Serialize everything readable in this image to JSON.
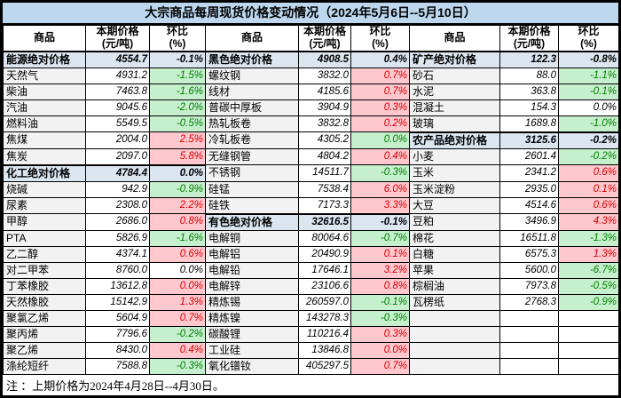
{
  "title": "大宗商品每周现货价格变动情况（2024年5月6日--5月10日）",
  "note": "注 ：上期价格为2024年4月28日--4月30日。",
  "header": {
    "commodity": "商品",
    "price": "本期价格",
    "price_unit": "(元/吨)",
    "pct": "环比",
    "pct_unit": "(%)"
  },
  "colors": {
    "title_bg": "#BDD7EE",
    "category_bg": "#DCE6F1",
    "name_bg": "#F2F2F2",
    "up_bg": "#FFC7CE",
    "up_text": "#D60000",
    "down_bg": "#C6EFCE",
    "down_text": "#008000",
    "border": "#000000"
  },
  "rows": [
    [
      {
        "name": "能源绝对价格",
        "price": "4554.7",
        "pct": "-0.1%",
        "style": "cat"
      },
      {
        "name": "黑色绝对价格",
        "price": "4908.5",
        "pct": "0.4%",
        "style": "cat"
      },
      {
        "name": "矿产绝对价格",
        "price": "122.3",
        "pct": "-0.8%",
        "style": "cat"
      }
    ],
    [
      {
        "name": "天然气",
        "price": "4931.2",
        "pct": "-1.5%",
        "style": "green"
      },
      {
        "name": "螺纹钢",
        "price": "3832.0",
        "pct": "0.7%",
        "style": "red"
      },
      {
        "name": "砂石",
        "price": "88.0",
        "pct": "-1.1%",
        "style": "green"
      }
    ],
    [
      {
        "name": "柴油",
        "price": "7463.8",
        "pct": "-1.6%",
        "style": "green"
      },
      {
        "name": "线材",
        "price": "4185.6",
        "pct": "0.7%",
        "style": "red"
      },
      {
        "name": "水泥",
        "price": "363.8",
        "pct": "-0.1%",
        "style": "green"
      }
    ],
    [
      {
        "name": "汽油",
        "price": "9045.6",
        "pct": "-2.0%",
        "style": "green"
      },
      {
        "name": "普碳中厚板",
        "price": "3904.9",
        "pct": "0.3%",
        "style": "red"
      },
      {
        "name": "混凝土",
        "price": "154.3",
        "pct": "0.0%",
        "style": "plain"
      }
    ],
    [
      {
        "name": "燃料油",
        "price": "5549.5",
        "pct": "-0.5%",
        "style": "green"
      },
      {
        "name": "热轧板卷",
        "price": "3832.8",
        "pct": "0.2%",
        "style": "red"
      },
      {
        "name": "玻璃",
        "price": "1689.8",
        "pct": "-1.0%",
        "style": "green"
      }
    ],
    [
      {
        "name": "焦煤",
        "price": "2004.0",
        "pct": "2.5%",
        "style": "red"
      },
      {
        "name": "冷轧板卷",
        "price": "4305.2",
        "pct": "0.0%",
        "style": "green"
      },
      {
        "name": "农产品绝对价格",
        "price": "3125.6",
        "pct": "-0.2%",
        "style": "cat"
      }
    ],
    [
      {
        "name": "焦炭",
        "price": "2097.0",
        "pct": "5.8%",
        "style": "red"
      },
      {
        "name": "无缝钢管",
        "price": "4804.2",
        "pct": "0.4%",
        "style": "red"
      },
      {
        "name": "小麦",
        "price": "2601.4",
        "pct": "-0.2%",
        "style": "green"
      }
    ],
    [
      {
        "name": "化工绝对价格",
        "price": "4784.4",
        "pct": "0.0%",
        "style": "cat"
      },
      {
        "name": "不锈钢",
        "price": "14511.7",
        "pct": "-0.3%",
        "style": "green"
      },
      {
        "name": "玉米",
        "price": "2341.2",
        "pct": "0.6%",
        "style": "red"
      }
    ],
    [
      {
        "name": "烧碱",
        "price": "942.9",
        "pct": "-0.9%",
        "style": "green"
      },
      {
        "name": "硅锰",
        "price": "7538.4",
        "pct": "6.0%",
        "style": "red"
      },
      {
        "name": "玉米淀粉",
        "price": "2935.0",
        "pct": "0.1%",
        "style": "red"
      }
    ],
    [
      {
        "name": "尿素",
        "price": "2308.0",
        "pct": "2.2%",
        "style": "red"
      },
      {
        "name": "硅铁",
        "price": "7173.3",
        "pct": "3.3%",
        "style": "red"
      },
      {
        "name": "大豆",
        "price": "4514.6",
        "pct": "0.6%",
        "style": "red"
      }
    ],
    [
      {
        "name": "甲醇",
        "price": "2686.0",
        "pct": "0.8%",
        "style": "red"
      },
      {
        "name": "有色绝对价格",
        "price": "32616.5",
        "pct": "-0.1%",
        "style": "cat"
      },
      {
        "name": "豆粕",
        "price": "3496.9",
        "pct": "4.3%",
        "style": "red"
      }
    ],
    [
      {
        "name": "PTA",
        "price": "5826.9",
        "pct": "-1.6%",
        "style": "green"
      },
      {
        "name": "电解铜",
        "price": "80064.6",
        "pct": "-0.7%",
        "style": "green"
      },
      {
        "name": "棉花",
        "price": "16511.8",
        "pct": "-1.3%",
        "style": "green"
      }
    ],
    [
      {
        "name": "乙二醇",
        "price": "4374.1",
        "pct": "0.6%",
        "style": "red"
      },
      {
        "name": "电解铝",
        "price": "20490.9",
        "pct": "0.1%",
        "style": "red"
      },
      {
        "name": "白糖",
        "price": "6575.3",
        "pct": "1.3%",
        "style": "red"
      }
    ],
    [
      {
        "name": "对二甲苯",
        "price": "8760.0",
        "pct": "0.0%",
        "style": "plain"
      },
      {
        "name": "电解铅",
        "price": "17646.1",
        "pct": "3.2%",
        "style": "red"
      },
      {
        "name": "苹果",
        "price": "5600.0",
        "pct": "-6.7%",
        "style": "green"
      }
    ],
    [
      {
        "name": "丁苯橡胶",
        "price": "13612.8",
        "pct": "0.0%",
        "style": "red"
      },
      {
        "name": "电解锌",
        "price": "23106.6",
        "pct": "0.8%",
        "style": "red"
      },
      {
        "name": "棕榈油",
        "price": "7973.8",
        "pct": "-0.5%",
        "style": "green"
      }
    ],
    [
      {
        "name": "天然橡胶",
        "price": "15142.9",
        "pct": "1.3%",
        "style": "red"
      },
      {
        "name": "精炼锡",
        "price": "260597.0",
        "pct": "-0.1%",
        "style": "green"
      },
      {
        "name": "瓦楞纸",
        "price": "2768.3",
        "pct": "-0.9%",
        "style": "green"
      }
    ],
    [
      {
        "name": "聚氯乙烯",
        "price": "5604.9",
        "pct": "0.7%",
        "style": "red"
      },
      {
        "name": "精炼镍",
        "price": "143278.3",
        "pct": "-0.3%",
        "style": "green"
      },
      {
        "name": "",
        "price": "",
        "pct": "",
        "style": "empty"
      }
    ],
    [
      {
        "name": "聚丙烯",
        "price": "7796.6",
        "pct": "-0.2%",
        "style": "green"
      },
      {
        "name": "碳酸锂",
        "price": "110216.4",
        "pct": "0.3%",
        "style": "red"
      },
      {
        "name": "",
        "price": "",
        "pct": "",
        "style": "empty"
      }
    ],
    [
      {
        "name": "聚乙烯",
        "price": "8430.0",
        "pct": "0.4%",
        "style": "red"
      },
      {
        "name": "工业硅",
        "price": "13846.8",
        "pct": "0.0%",
        "style": "red"
      },
      {
        "name": "",
        "price": "",
        "pct": "",
        "style": "empty"
      }
    ],
    [
      {
        "name": "涤纶短纤",
        "price": "7588.8",
        "pct": "-0.3%",
        "style": "green"
      },
      {
        "name": "氧化镨钕",
        "price": "405297.5",
        "pct": "0.7%",
        "style": "red"
      },
      {
        "name": "",
        "price": "",
        "pct": "",
        "style": "empty"
      }
    ]
  ]
}
